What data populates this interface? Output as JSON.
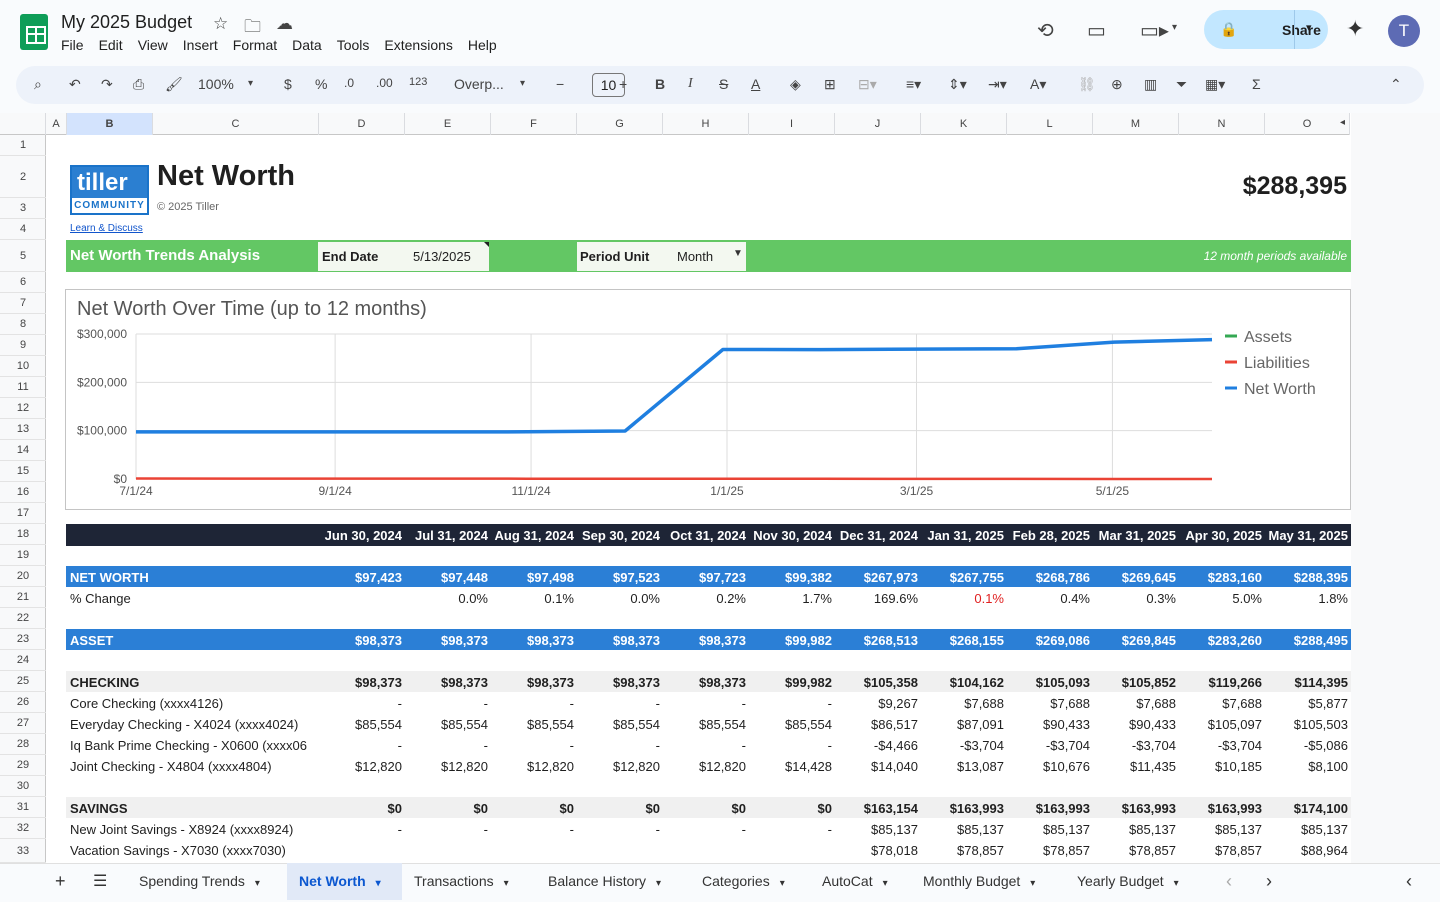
{
  "app": {
    "doc_title": "My 2025 Budget",
    "menus": [
      "File",
      "Edit",
      "View",
      "Insert",
      "Format",
      "Data",
      "Tools",
      "Extensions",
      "Help"
    ],
    "share_label": "Share",
    "avatar": "T"
  },
  "toolbar": {
    "zoom": "100%",
    "currency": "$",
    "percent": "%",
    "dec_down": ".0",
    "dec_up": ".00",
    "number_fmt": "123",
    "font": "Overp...",
    "font_size": "10",
    "bold": "B",
    "italic": "I",
    "strike": "S",
    "textcolor": "A"
  },
  "columns": [
    "A",
    "B",
    "C",
    "D",
    "E",
    "F",
    "G",
    "H",
    "I",
    "J",
    "K",
    "L",
    "M",
    "N",
    "O"
  ],
  "rows": [
    "1",
    "2",
    "3",
    "4",
    "5",
    "6",
    "7",
    "8",
    "9",
    "10",
    "11",
    "12",
    "13",
    "14",
    "15",
    "16",
    "17",
    "18",
    "19",
    "20",
    "21",
    "22",
    "23",
    "24",
    "25",
    "26",
    "27",
    "28",
    "29",
    "30",
    "31",
    "32",
    "33"
  ],
  "header": {
    "logo_top": "tiller",
    "logo_bottom": "COMMUNITY",
    "title": "Net Worth",
    "copyright": "© 2025 Tiller",
    "learn": "Learn & Discuss",
    "total": "$288,395"
  },
  "controls": {
    "section_label": "Net Worth Trends Analysis",
    "end_date_label": "End Date",
    "end_date_value": "5/13/2025",
    "period_label": "Period Unit",
    "period_value": "Month",
    "available": "12 month periods available"
  },
  "chart_data": {
    "type": "line",
    "title": "Net Worth Over Time (up to 12 months)",
    "x": [
      "6/30/24",
      "7/31/24",
      "8/31/24",
      "9/30/24",
      "10/31/24",
      "11/30/24",
      "12/31/24",
      "1/31/25",
      "2/28/25",
      "3/31/25",
      "4/30/25",
      "5/31/25"
    ],
    "x_ticks": [
      "7/1/24",
      "9/1/24",
      "11/1/24",
      "1/1/25",
      "3/1/25",
      "5/1/25"
    ],
    "y_ticks": [
      "$300,000",
      "$200,000",
      "$100,000",
      "$0"
    ],
    "ylim": [
      0,
      300000
    ],
    "series": [
      {
        "name": "Assets",
        "color": "#34a853",
        "values": [
          98373,
          98373,
          98373,
          98373,
          98373,
          99982,
          268513,
          268155,
          269086,
          269845,
          283260,
          288495
        ]
      },
      {
        "name": "Liabilities",
        "color": "#ea4335",
        "values": [
          950,
          925,
          875,
          850,
          650,
          600,
          540,
          400,
          300,
          200,
          100,
          100
        ]
      },
      {
        "name": "Net Worth",
        "color": "#1f7fe0",
        "values": [
          97423,
          97448,
          97498,
          97523,
          97723,
          99382,
          267973,
          267755,
          268786,
          269645,
          283160,
          288395
        ]
      }
    ]
  },
  "table": {
    "dates": [
      "Jun 30, 2024",
      "Jul 31, 2024",
      "Aug 31, 2024",
      "Sep 30, 2024",
      "Oct 31, 2024",
      "Nov 30, 2024",
      "Dec 31, 2024",
      "Jan 31, 2025",
      "Feb 28, 2025",
      "Mar 31, 2025",
      "Apr 30, 2025",
      "May 31, 2025"
    ],
    "net_worth": {
      "label": "NET WORTH",
      "values": [
        "$97,423",
        "$97,448",
        "$97,498",
        "$97,523",
        "$97,723",
        "$99,382",
        "$267,973",
        "$267,755",
        "$268,786",
        "$269,645",
        "$283,160",
        "$288,395"
      ]
    },
    "pct_change": {
      "label": "% Change",
      "values": [
        "",
        "0.0%",
        "0.1%",
        "0.0%",
        "0.2%",
        "1.7%",
        "169.6%",
        "0.1%",
        "0.4%",
        "0.3%",
        "5.0%",
        "1.8%"
      ]
    },
    "asset": {
      "label": "ASSET",
      "values": [
        "$98,373",
        "$98,373",
        "$98,373",
        "$98,373",
        "$98,373",
        "$99,982",
        "$268,513",
        "$268,155",
        "$269,086",
        "$269,845",
        "$283,260",
        "$288,495"
      ]
    },
    "checking": {
      "label": "CHECKING",
      "values": [
        "$98,373",
        "$98,373",
        "$98,373",
        "$98,373",
        "$98,373",
        "$99,982",
        "$105,358",
        "$104,162",
        "$105,093",
        "$105,852",
        "$119,266",
        "$114,395"
      ]
    },
    "accounts": [
      {
        "label": "Core Checking (xxxx4126)",
        "values": [
          "-",
          "-",
          "-",
          "-",
          "-",
          "-",
          "$9,267",
          "$7,688",
          "$7,688",
          "$7,688",
          "$7,688",
          "$5,877"
        ]
      },
      {
        "label": "Everyday Checking - X4024 (xxxx4024)",
        "values": [
          "$85,554",
          "$85,554",
          "$85,554",
          "$85,554",
          "$85,554",
          "$85,554",
          "$86,517",
          "$87,091",
          "$90,433",
          "$90,433",
          "$105,097",
          "$105,503"
        ]
      },
      {
        "label": "Iq Bank Prime Checking - X0600 (xxxx06",
        "values": [
          "-",
          "-",
          "-",
          "-",
          "-",
          "-",
          "-$4,466",
          "-$3,704",
          "-$3,704",
          "-$3,704",
          "-$3,704",
          "-$5,086"
        ]
      },
      {
        "label": "Joint Checking - X4804 (xxxx4804)",
        "values": [
          "$12,820",
          "$12,820",
          "$12,820",
          "$12,820",
          "$12,820",
          "$14,428",
          "$14,040",
          "$13,087",
          "$10,676",
          "$11,435",
          "$10,185",
          "$8,100"
        ]
      }
    ],
    "savings": {
      "label": "SAVINGS",
      "values": [
        "$0",
        "$0",
        "$0",
        "$0",
        "$0",
        "$0",
        "$163,154",
        "$163,993",
        "$163,993",
        "$163,993",
        "$163,993",
        "$174,100"
      ]
    },
    "savings_accounts": [
      {
        "label": "New Joint Savings - X8924 (xxxx8924)",
        "values": [
          "-",
          "-",
          "-",
          "-",
          "-",
          "-",
          "$85,137",
          "$85,137",
          "$85,137",
          "$85,137",
          "$85,137",
          "$85,137"
        ]
      },
      {
        "label": "Vacation Savings - X7030 (xxxx7030)",
        "values": [
          "",
          "",
          "",
          "",
          "",
          "",
          "$78,018",
          "$78,857",
          "$78,857",
          "$78,857",
          "$78,857",
          "$88,964"
        ]
      }
    ]
  },
  "tabs": [
    "Spending Trends",
    "Net Worth",
    "Transactions",
    "Balance History",
    "Categories",
    "AutoCat",
    "Monthly Budget",
    "Yearly Budget"
  ]
}
